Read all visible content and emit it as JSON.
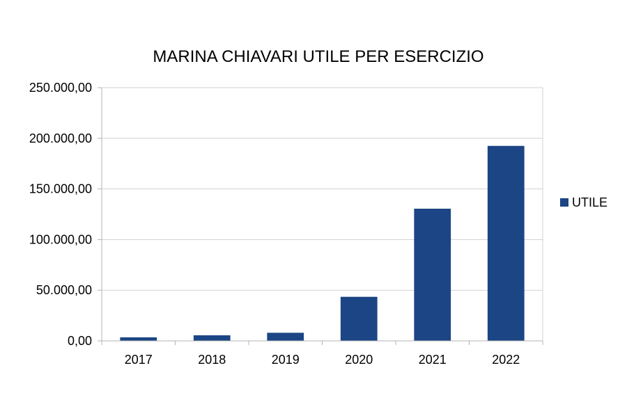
{
  "chart_data": {
    "type": "bar",
    "title": "MARINA CHIAVARI UTILE PER ESERCIZIO",
    "categories": [
      "2017",
      "2018",
      "2019",
      "2020",
      "2021",
      "2022"
    ],
    "series": [
      {
        "name": "UTILE",
        "values": [
          3500,
          5500,
          8000,
          43500,
          130500,
          192500
        ],
        "color": "#1b4584"
      }
    ],
    "ylim": [
      0,
      250000
    ],
    "yticks": [
      0,
      50000,
      100000,
      150000,
      200000,
      250000
    ],
    "ytick_labels": [
      "0,00",
      "50.000,00",
      "100.000,00",
      "150.000,00",
      "200.000,00",
      "250.000,00"
    ],
    "grid": true,
    "legend_position": "right",
    "xlabel": "",
    "ylabel": ""
  }
}
